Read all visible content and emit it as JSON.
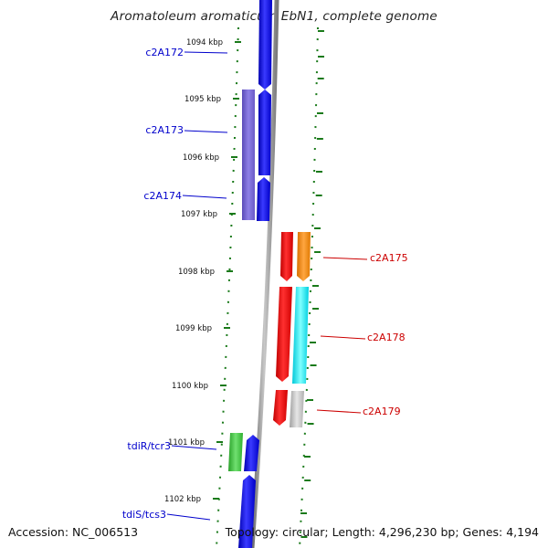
{
  "title": "Aromatoleum aromaticum EbN1, complete genome",
  "accession": "Accession: NC_006513",
  "topology": "Topology: circular; Length: 4,296,230 bp; Genes: 4,194",
  "colors": {
    "backbone": "#8a8a8a",
    "tick": "#1a7a1a",
    "label_forward": "#0000cc",
    "label_reverse": "#cc0000"
  },
  "ticks": [
    {
      "label": "1094 kbp"
    },
    {
      "label": "1095 kbp"
    },
    {
      "label": "1096 kbp"
    },
    {
      "label": "1097 kbp"
    },
    {
      "label": "1098 kbp"
    },
    {
      "label": "1099 kbp"
    },
    {
      "label": "1100 kbp"
    },
    {
      "label": "1101 kbp"
    },
    {
      "label": "1102 kbp"
    }
  ],
  "genes_forward": [
    {
      "label": "c2A172"
    },
    {
      "label": "c2A173"
    },
    {
      "label": "c2A174"
    },
    {
      "label": "tdiR/tcr3"
    },
    {
      "label": "tdiS/tcs3"
    }
  ],
  "genes_reverse": [
    {
      "label": "c2A175"
    },
    {
      "label": "c2A178"
    },
    {
      "label": "c2A179"
    }
  ]
}
